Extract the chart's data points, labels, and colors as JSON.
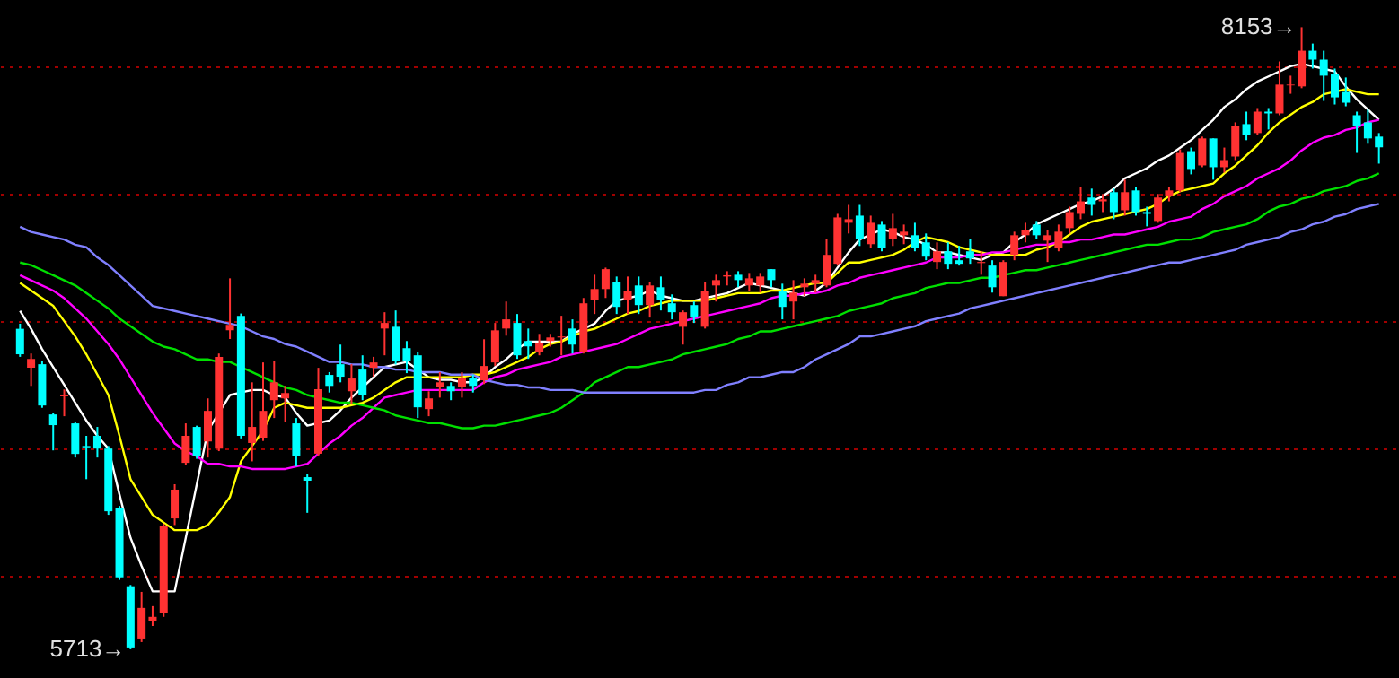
{
  "chart_data": {
    "type": "candlestick",
    "ylim": [
      5600,
      8260
    ],
    "yticks": [
      {
        "value": 6000,
        "label": null
      },
      {
        "value": 6500,
        "label": null
      },
      {
        "value": 7000,
        "label": null
      },
      {
        "value": 7500,
        "label": null
      },
      {
        "value": 8000,
        "label": null
      }
    ],
    "grid": "y",
    "tick_labels": false,
    "annotations": [
      "8153→",
      "5713→"
    ],
    "categories": [
      null,
      null,
      null,
      null,
      null,
      null,
      null,
      null,
      null,
      null,
      null,
      null,
      null,
      null,
      null,
      null,
      null,
      null,
      null,
      null,
      null,
      null,
      null,
      null,
      null,
      null,
      null,
      null,
      null,
      null,
      null,
      null,
      null,
      null,
      null,
      null,
      null,
      null,
      null,
      null,
      null,
      null,
      null,
      null,
      null,
      null,
      null,
      null,
      null,
      null,
      null,
      null,
      null,
      null,
      null,
      null,
      null,
      null,
      null,
      null,
      null,
      null,
      null,
      null,
      null,
      null,
      null,
      null,
      null,
      null,
      null,
      null,
      null,
      null,
      null,
      null,
      null,
      null,
      null,
      null,
      null,
      null,
      null,
      null,
      null,
      null,
      null,
      null,
      null,
      null,
      null,
      null,
      null,
      null,
      null,
      null,
      null,
      null,
      null,
      null,
      null,
      null,
      null,
      null,
      null,
      null,
      null,
      null,
      null,
      null,
      null,
      null,
      null,
      null,
      null,
      null,
      null,
      null,
      null,
      null,
      null,
      null,
      null,
      null
    ],
    "ohlc": [
      [
        6970,
        6990,
        6860,
        6870
      ],
      [
        6817,
        6873,
        6746,
        6852
      ],
      [
        6831,
        6845,
        6660,
        6669
      ],
      [
        6634,
        6641,
        6493,
        6592
      ],
      [
        6705,
        6732,
        6627,
        6710
      ],
      [
        6599,
        6606,
        6465,
        6479
      ],
      [
        6510,
        6550,
        6380,
        6505
      ],
      [
        6550,
        6585,
        6465,
        6500
      ],
      [
        6500,
        6510,
        6240,
        6254
      ],
      [
        6268,
        6275,
        5985,
        5995
      ],
      [
        5960,
        5965,
        5713,
        5720
      ],
      [
        5755,
        5938,
        5741,
        5875
      ],
      [
        5825,
        5882,
        5804,
        5840
      ],
      [
        5854,
        6205,
        5840,
        6198
      ],
      [
        6226,
        6360,
        6200,
        6339
      ],
      [
        6444,
        6599,
        6437,
        6550
      ],
      [
        6585,
        6590,
        6460,
        6472
      ],
      [
        6528,
        6697,
        6465,
        6648
      ],
      [
        6500,
        6873,
        6490,
        6860
      ],
      [
        6964,
        7168,
        6930,
        6985
      ],
      [
        7021,
        7030,
        6540,
        6550
      ],
      [
        6522,
        6760,
        6450,
        6585
      ],
      [
        6543,
        6838,
        6530,
        6648
      ],
      [
        6690,
        6845,
        6620,
        6760
      ],
      [
        6697,
        6746,
        6605,
        6718
      ],
      [
        6599,
        6620,
        6430,
        6472
      ],
      [
        6388,
        6402,
        6248,
        6374
      ],
      [
        6480,
        6817,
        6472,
        6733
      ],
      [
        6789,
        6800,
        6720,
        6746
      ],
      [
        6831,
        6908,
        6760,
        6782
      ],
      [
        6725,
        6831,
        6676,
        6775
      ],
      [
        6810,
        6866,
        6690,
        6711
      ],
      [
        6817,
        6860,
        6782,
        6838
      ],
      [
        6971,
        7035,
        6866,
        6993
      ],
      [
        6978,
        7042,
        6830,
        6845
      ],
      [
        6894,
        6922,
        6796,
        6845
      ],
      [
        6866,
        6880,
        6620,
        6662
      ],
      [
        6655,
        6725,
        6627,
        6697
      ],
      [
        6740,
        6800,
        6700,
        6760
      ],
      [
        6746,
        6760,
        6690,
        6725
      ],
      [
        6740,
        6800,
        6700,
        6775
      ],
      [
        6775,
        6790,
        6720,
        6746
      ],
      [
        6768,
        6929,
        6753,
        6824
      ],
      [
        6838,
        6993,
        6824,
        6964
      ],
      [
        6971,
        7077,
        6943,
        7007
      ],
      [
        6993,
        7028,
        6852,
        6866
      ],
      [
        6922,
        6971,
        6852,
        6901
      ],
      [
        6880,
        6950,
        6866,
        6915
      ],
      [
        6922,
        6950,
        6900,
        6936
      ],
      [
        6936,
        7021,
        6866,
        6940
      ],
      [
        6971,
        7007,
        6873,
        6908
      ],
      [
        6880,
        7091,
        6873,
        7070
      ],
      [
        7084,
        7182,
        7028,
        7126
      ],
      [
        7126,
        7210,
        7091,
        7204
      ],
      [
        7154,
        7175,
        7028,
        7056
      ],
      [
        7084,
        7175,
        7028,
        7119
      ],
      [
        7140,
        7175,
        7028,
        7063
      ],
      [
        7063,
        7154,
        7014,
        7140
      ],
      [
        7133,
        7175,
        7042,
        7084
      ],
      [
        7070,
        7105,
        7007,
        7035
      ],
      [
        6978,
        7042,
        6908,
        7035
      ],
      [
        7063,
        7077,
        6993,
        7014
      ],
      [
        6978,
        7154,
        6971,
        7119
      ],
      [
        7140,
        7182,
        7077,
        7161
      ],
      [
        7175,
        7196,
        7140,
        7180
      ],
      [
        7182,
        7196,
        7133,
        7161
      ],
      [
        7140,
        7189,
        7119,
        7168
      ],
      [
        7140,
        7189,
        7112,
        7175
      ],
      [
        7204,
        7204,
        7133,
        7161
      ],
      [
        7119,
        7147,
        7007,
        7056
      ],
      [
        7077,
        7161,
        7007,
        7112
      ],
      [
        7133,
        7168,
        7098,
        7147
      ],
      [
        7147,
        7182,
        7112,
        7161
      ],
      [
        7140,
        7323,
        7133,
        7260
      ],
      [
        7225,
        7421,
        7218,
        7407
      ],
      [
        7386,
        7456,
        7344,
        7400
      ],
      [
        7414,
        7456,
        7295,
        7323
      ],
      [
        7302,
        7414,
        7288,
        7386
      ],
      [
        7379,
        7393,
        7274,
        7288
      ],
      [
        7323,
        7421,
        7295,
        7365
      ],
      [
        7337,
        7379,
        7302,
        7351
      ],
      [
        7337,
        7386,
        7274,
        7288
      ],
      [
        7309,
        7344,
        7239,
        7253
      ],
      [
        7232,
        7309,
        7204,
        7274
      ],
      [
        7274,
        7309,
        7204,
        7225
      ],
      [
        7239,
        7295,
        7218,
        7225
      ],
      [
        7274,
        7323,
        7225,
        7246
      ],
      [
        7228,
        7274,
        7182,
        7232
      ],
      [
        7218,
        7239,
        7112,
        7133
      ],
      [
        7098,
        7239,
        7098,
        7232
      ],
      [
        7260,
        7351,
        7239,
        7337
      ],
      [
        7337,
        7386,
        7309,
        7358
      ],
      [
        7379,
        7393,
        7323,
        7337
      ],
      [
        7316,
        7358,
        7232,
        7337
      ],
      [
        7288,
        7379,
        7274,
        7351
      ],
      [
        7365,
        7449,
        7344,
        7428
      ],
      [
        7421,
        7527,
        7400,
        7470
      ],
      [
        7485,
        7520,
        7414,
        7456
      ],
      [
        7470,
        7499,
        7428,
        7478
      ],
      [
        7506,
        7520,
        7400,
        7428
      ],
      [
        7435,
        7555,
        7414,
        7506
      ],
      [
        7513,
        7527,
        7414,
        7428
      ],
      [
        7428,
        7449,
        7372,
        7421
      ],
      [
        7393,
        7499,
        7386,
        7485
      ],
      [
        7492,
        7527,
        7470,
        7513
      ],
      [
        7513,
        7674,
        7506,
        7660
      ],
      [
        7667,
        7681,
        7576,
        7597
      ],
      [
        7611,
        7724,
        7604,
        7717
      ],
      [
        7717,
        7717,
        7555,
        7604
      ],
      [
        7604,
        7681,
        7583,
        7632
      ],
      [
        7646,
        7780,
        7632,
        7766
      ],
      [
        7773,
        7822,
        7710,
        7731
      ],
      [
        7738,
        7836,
        7731,
        7822
      ],
      [
        7822,
        7836,
        7752,
        7815
      ],
      [
        7815,
        8019,
        7808,
        7928
      ],
      [
        7925,
        7963,
        7892,
        7928
      ],
      [
        7921,
        8153,
        7914,
        8061
      ],
      [
        8061,
        8089,
        7991,
        8026
      ],
      [
        8026,
        8061,
        7864,
        7963
      ],
      [
        7970,
        7991,
        7850,
        7878
      ],
      [
        7899,
        7956,
        7843,
        7857
      ],
      [
        7808,
        7822,
        7660,
        7766
      ],
      [
        7780,
        7829,
        7696,
        7717
      ],
      [
        7724,
        7738,
        7618,
        7682
      ]
    ],
    "colors": [
      "#00ffff",
      "#ff3232",
      "#00ffff",
      "#00ffff",
      "#ff3232",
      "#00ffff",
      "#00ffff",
      "#00ffff",
      "#00ffff",
      "#00ffff",
      "#00ffff",
      "#ff3232",
      "#ff3232",
      "#ff3232",
      "#ff3232",
      "#ff3232",
      "#00ffff",
      "#ff3232",
      "#ff3232",
      "#ff3232",
      "#00ffff",
      "#ff3232",
      "#ff3232",
      "#ff3232",
      "#ff3232",
      "#00ffff",
      "#00ffff",
      "#ff3232",
      "#00ffff",
      "#00ffff",
      "#ff3232",
      "#00ffff",
      "#ff3232",
      "#ff3232",
      "#00ffff",
      "#00ffff",
      "#00ffff",
      "#ff3232",
      "#ff3232",
      "#00ffff",
      "#ff3232",
      "#00ffff",
      "#ff3232",
      "#ff3232",
      "#ff3232",
      "#00ffff",
      "#00ffff",
      "#ff3232",
      "#ff3232",
      "#ff3232",
      "#00ffff",
      "#ff3232",
      "#ff3232",
      "#ff3232",
      "#00ffff",
      "#ff3232",
      "#00ffff",
      "#ff3232",
      "#00ffff",
      "#00ffff",
      "#ff3232",
      "#00ffff",
      "#ff3232",
      "#ff3232",
      "#ff3232",
      "#00ffff",
      "#ff3232",
      "#ff3232",
      "#00ffff",
      "#00ffff",
      "#ff3232",
      "#ff3232",
      "#ff3232",
      "#ff3232",
      "#ff3232",
      "#ff3232",
      "#00ffff",
      "#ff3232",
      "#00ffff",
      "#ff3232",
      "#ff3232",
      "#00ffff",
      "#00ffff",
      "#ff3232",
      "#00ffff",
      "#00ffff",
      "#00ffff",
      "#ff3232",
      "#00ffff",
      "#ff3232",
      "#ff3232",
      "#ff3232",
      "#00ffff",
      "#ff3232",
      "#ff3232",
      "#ff3232",
      "#ff3232",
      "#00ffff",
      "#ff3232",
      "#00ffff",
      "#ff3232",
      "#00ffff",
      "#00ffff",
      "#ff3232",
      "#ff3232",
      "#ff3232",
      "#00ffff",
      "#ff3232",
      "#00ffff",
      "#ff3232",
      "#ff3232",
      "#00ffff",
      "#ff3232",
      "#00ffff",
      "#ff3232",
      "#ff3232",
      "#ff3232",
      "#00ffff",
      "#00ffff",
      "#00ffff",
      "#00ffff",
      "#00ffff",
      "#00ffff",
      "#00ffff"
    ],
    "series": [
      {
        "type": "line",
        "color": "#ffffff",
        "values": [
          7040,
          6970,
          6890,
          6820,
          6750,
          6680,
          6610,
          6550,
          6500,
          6320,
          6150,
          6040,
          5940,
          5940,
          5940,
          6150,
          6360,
          6570,
          6640,
          6710,
          6720,
          6730,
          6730,
          6710,
          6700,
          6640,
          6590,
          6600,
          6610,
          6650,
          6700,
          6740,
          6780,
          6820,
          6830,
          6840,
          6810,
          6780,
          6770,
          6770,
          6760,
          6760,
          6780,
          6820,
          6850,
          6890,
          6920,
          6920,
          6920,
          6920,
          6950,
          6970,
          6990,
          7040,
          7080,
          7090,
          7100,
          7120,
          7100,
          7090,
          7080,
          7080,
          7090,
          7100,
          7110,
          7130,
          7150,
          7140,
          7130,
          7120,
          7110,
          7100,
          7120,
          7150,
          7210,
          7270,
          7320,
          7340,
          7360,
          7350,
          7330,
          7320,
          7300,
          7270,
          7270,
          7260,
          7250,
          7240,
          7260,
          7270,
          7310,
          7340,
          7380,
          7400,
          7420,
          7440,
          7460,
          7470,
          7490,
          7520,
          7560,
          7580,
          7600,
          7630,
          7650,
          7680,
          7710,
          7750,
          7790,
          7840,
          7870,
          7910,
          7940,
          7960,
          7980,
          8000,
          8010,
          8000,
          7990,
          7980,
          7920,
          7870,
          7830,
          7790
        ]
      },
      {
        "type": "line",
        "color": "#ffff00",
        "values": [
          7150,
          7120,
          7090,
          7060,
          7000,
          6940,
          6870,
          6790,
          6710,
          6550,
          6380,
          6310,
          6240,
          6210,
          6180,
          6180,
          6180,
          6200,
          6250,
          6310,
          6450,
          6510,
          6570,
          6660,
          6680,
          6670,
          6660,
          6660,
          6660,
          6660,
          6670,
          6680,
          6700,
          6730,
          6760,
          6780,
          6780,
          6780,
          6780,
          6780,
          6780,
          6790,
          6790,
          6800,
          6820,
          6840,
          6860,
          6890,
          6910,
          6920,
          6940,
          6960,
          6970,
          6990,
          7010,
          7030,
          7040,
          7060,
          7070,
          7080,
          7080,
          7080,
          7080,
          7090,
          7100,
          7110,
          7110,
          7110,
          7120,
          7120,
          7130,
          7140,
          7150,
          7150,
          7190,
          7230,
          7230,
          7240,
          7250,
          7260,
          7280,
          7310,
          7330,
          7320,
          7310,
          7290,
          7280,
          7270,
          7260,
          7260,
          7260,
          7260,
          7280,
          7290,
          7310,
          7340,
          7370,
          7390,
          7400,
          7410,
          7420,
          7430,
          7440,
          7460,
          7490,
          7510,
          7520,
          7530,
          7540,
          7580,
          7610,
          7650,
          7690,
          7740,
          7780,
          7810,
          7840,
          7860,
          7890,
          7900,
          7910,
          7900,
          7890,
          7890
        ]
      },
      {
        "type": "line",
        "color": "#ff00ff",
        "values": [
          7180,
          7160,
          7140,
          7120,
          7090,
          7050,
          7010,
          6960,
          6910,
          6850,
          6780,
          6710,
          6640,
          6580,
          6520,
          6490,
          6470,
          6440,
          6440,
          6430,
          6430,
          6420,
          6420,
          6420,
          6420,
          6430,
          6440,
          6480,
          6520,
          6550,
          6590,
          6620,
          6660,
          6700,
          6710,
          6720,
          6730,
          6730,
          6730,
          6730,
          6730,
          6730,
          6760,
          6780,
          6790,
          6810,
          6820,
          6830,
          6840,
          6860,
          6870,
          6880,
          6890,
          6900,
          6910,
          6930,
          6950,
          6970,
          6980,
          6990,
          7000,
          7010,
          7020,
          7030,
          7040,
          7050,
          7060,
          7070,
          7090,
          7100,
          7100,
          7110,
          7110,
          7120,
          7140,
          7150,
          7170,
          7180,
          7190,
          7200,
          7210,
          7220,
          7230,
          7250,
          7250,
          7250,
          7260,
          7260,
          7270,
          7270,
          7280,
          7290,
          7300,
          7300,
          7310,
          7310,
          7320,
          7320,
          7330,
          7340,
          7340,
          7350,
          7360,
          7370,
          7390,
          7400,
          7410,
          7440,
          7460,
          7490,
          7510,
          7530,
          7560,
          7580,
          7600,
          7630,
          7670,
          7700,
          7720,
          7730,
          7750,
          7760,
          7780,
          7790
        ]
      },
      {
        "type": "line",
        "color": "#00e000",
        "values": [
          7230,
          7220,
          7200,
          7180,
          7160,
          7140,
          7110,
          7080,
          7050,
          7010,
          6980,
          6950,
          6920,
          6900,
          6890,
          6870,
          6850,
          6850,
          6840,
          6840,
          6820,
          6800,
          6780,
          6760,
          6740,
          6730,
          6710,
          6700,
          6690,
          6680,
          6680,
          6670,
          6660,
          6650,
          6630,
          6620,
          6610,
          6600,
          6600,
          6590,
          6580,
          6580,
          6590,
          6590,
          6600,
          6610,
          6620,
          6630,
          6640,
          6660,
          6690,
          6720,
          6760,
          6780,
          6800,
          6820,
          6820,
          6830,
          6840,
          6850,
          6870,
          6880,
          6890,
          6900,
          6910,
          6930,
          6940,
          6960,
          6960,
          6970,
          6980,
          6990,
          7000,
          7010,
          7020,
          7040,
          7050,
          7060,
          7070,
          7090,
          7100,
          7110,
          7130,
          7140,
          7150,
          7150,
          7160,
          7170,
          7170,
          7180,
          7190,
          7200,
          7200,
          7210,
          7220,
          7230,
          7240,
          7250,
          7260,
          7270,
          7280,
          7290,
          7300,
          7300,
          7310,
          7320,
          7320,
          7330,
          7350,
          7360,
          7370,
          7380,
          7400,
          7430,
          7450,
          7460,
          7480,
          7490,
          7510,
          7520,
          7530,
          7550,
          7560,
          7580
        ]
      },
      {
        "type": "line",
        "color": "#8080ff",
        "values": [
          7370,
          7350,
          7340,
          7330,
          7320,
          7300,
          7290,
          7250,
          7220,
          7180,
          7140,
          7100,
          7060,
          7050,
          7040,
          7030,
          7020,
          7010,
          7000,
          6990,
          6980,
          6960,
          6940,
          6930,
          6910,
          6900,
          6880,
          6860,
          6840,
          6840,
          6830,
          6830,
          6820,
          6820,
          6810,
          6810,
          6800,
          6800,
          6800,
          6790,
          6790,
          6790,
          6770,
          6760,
          6750,
          6750,
          6740,
          6740,
          6730,
          6730,
          6730,
          6720,
          6720,
          6720,
          6720,
          6720,
          6720,
          6720,
          6720,
          6720,
          6720,
          6720,
          6730,
          6730,
          6750,
          6760,
          6780,
          6780,
          6790,
          6800,
          6800,
          6820,
          6850,
          6870,
          6890,
          6910,
          6940,
          6940,
          6950,
          6960,
          6970,
          6980,
          7000,
          7010,
          7020,
          7030,
          7050,
          7060,
          7070,
          7080,
          7090,
          7100,
          7110,
          7120,
          7130,
          7140,
          7150,
          7160,
          7170,
          7180,
          7190,
          7200,
          7210,
          7220,
          7230,
          7230,
          7240,
          7250,
          7260,
          7270,
          7280,
          7300,
          7310,
          7320,
          7330,
          7350,
          7360,
          7380,
          7390,
          7410,
          7420,
          7440,
          7450,
          7460
        ]
      }
    ]
  }
}
